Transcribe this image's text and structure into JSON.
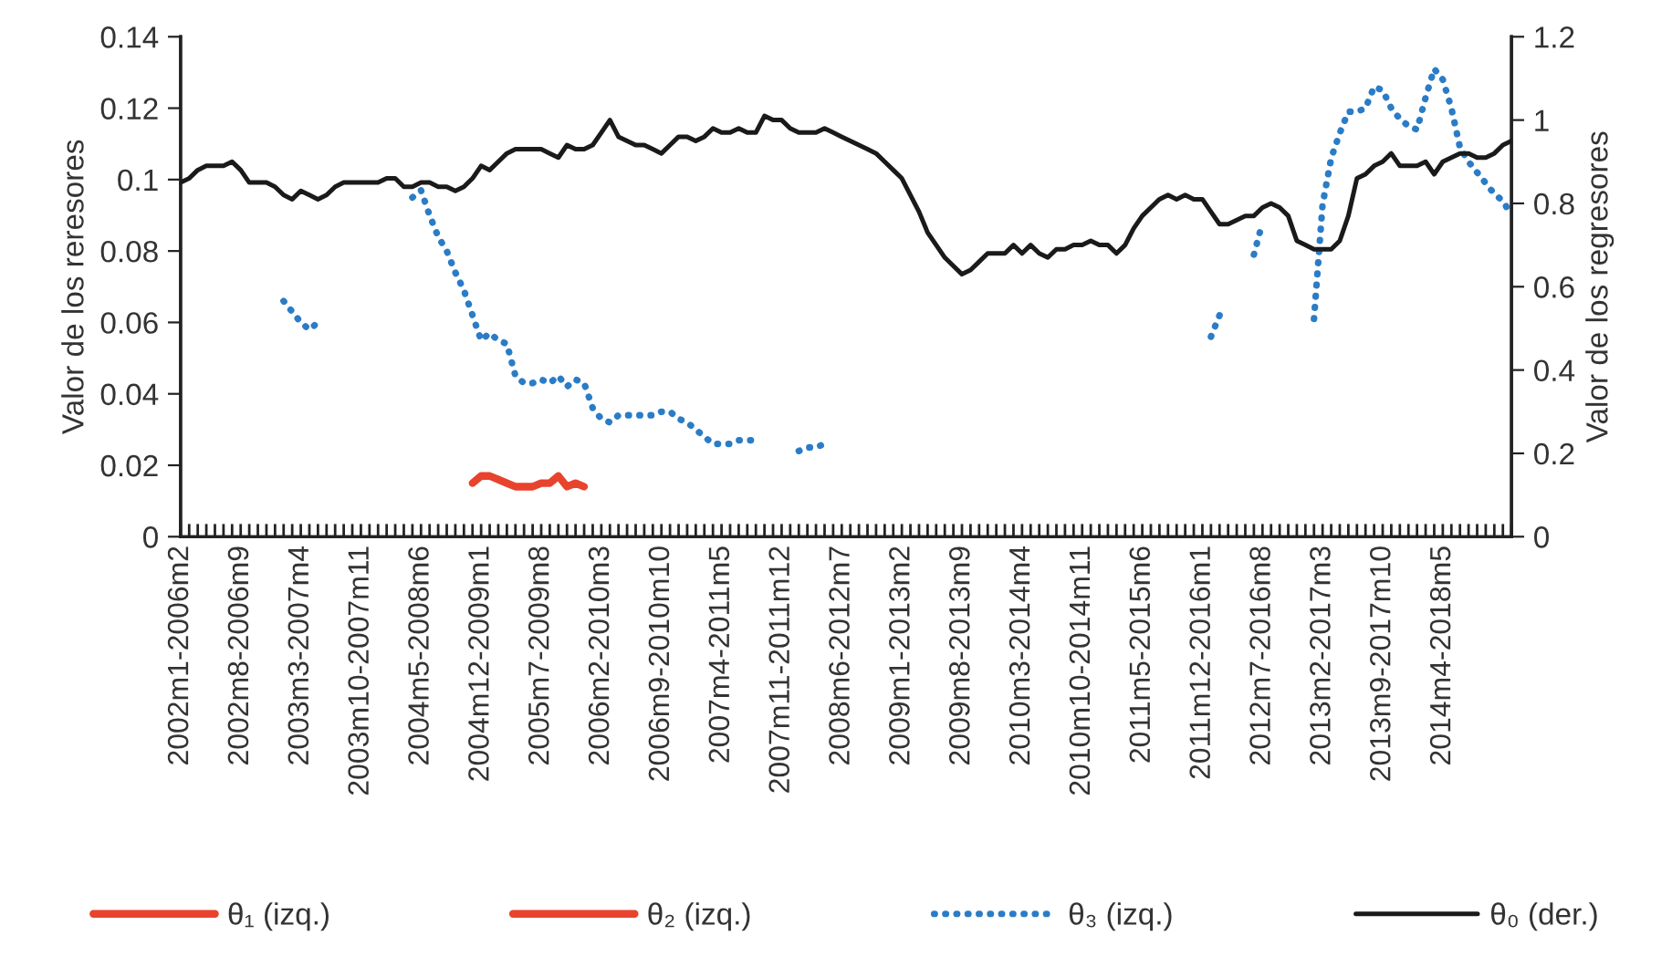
{
  "chart_data": {
    "type": "line",
    "ylabel": "Valor de los reresores",
    "y2label": "Valor de los regresores",
    "ylim": [
      0,
      0.14
    ],
    "yticks": [
      0,
      0.02,
      0.04,
      0.06,
      0.08,
      0.1,
      0.12,
      0.14
    ],
    "y2lim": [
      0,
      1.2
    ],
    "y2ticks": [
      0,
      0.2,
      0.4,
      0.6,
      0.8,
      1,
      1.2
    ],
    "categories": [
      "2002m1-2006m2",
      null,
      null,
      null,
      null,
      null,
      null,
      "2002m8-2006m9",
      null,
      null,
      null,
      null,
      null,
      null,
      "2003m3-2007m4",
      null,
      null,
      null,
      null,
      null,
      null,
      "2003m10-2007m11",
      null,
      null,
      null,
      null,
      null,
      null,
      "2004m5-2008m6",
      null,
      null,
      null,
      null,
      null,
      null,
      "2004m12-2009m1",
      null,
      null,
      null,
      null,
      null,
      null,
      "2005m7-2009m8",
      null,
      null,
      null,
      null,
      null,
      null,
      "2006m2-2010m3",
      null,
      null,
      null,
      null,
      null,
      null,
      "2006m9-2010m10",
      null,
      null,
      null,
      null,
      null,
      null,
      "2007m4-2011m5",
      null,
      null,
      null,
      null,
      null,
      null,
      "2007m11-2011m12",
      null,
      null,
      null,
      null,
      null,
      null,
      "2008m6-2012m7",
      null,
      null,
      null,
      null,
      null,
      null,
      "2009m1-2013m2",
      null,
      null,
      null,
      null,
      null,
      null,
      "2009m8-2013m9",
      null,
      null,
      null,
      null,
      null,
      null,
      "2010m3-2014m4",
      null,
      null,
      null,
      null,
      null,
      null,
      "2010m10-2014m11",
      null,
      null,
      null,
      null,
      null,
      null,
      "2011m5-2015m6",
      null,
      null,
      null,
      null,
      null,
      null,
      "2011m12-2016m1",
      null,
      null,
      null,
      null,
      null,
      null,
      "2012m7-2016m8",
      null,
      null,
      null,
      null,
      null,
      null,
      "2013m2-2017m3",
      null,
      null,
      null,
      null,
      null,
      null,
      "2013m9-2017m10",
      null,
      null,
      null,
      null,
      null,
      null,
      "2014m4-2018m5",
      null,
      null,
      null,
      null,
      null,
      null,
      null,
      null
    ],
    "grid": false,
    "legend": "bottom",
    "marker": "none",
    "series": [
      {
        "name": "θ₁ (izq.)",
        "color": "#e8432d",
        "line_style": "solid",
        "values": [
          null,
          null,
          null,
          null,
          null,
          null,
          null,
          null,
          null,
          null,
          null,
          null,
          null,
          null,
          null,
          null,
          null,
          null,
          null,
          null,
          null,
          null,
          null,
          null,
          null,
          null,
          null,
          null,
          null,
          null,
          null,
          null,
          null,
          null,
          0.015,
          0.017,
          0.017,
          0.016,
          0.015,
          0.014,
          0.014,
          0.014,
          0.015,
          0.015,
          0.017,
          0.014,
          0.015,
          0.014,
          null,
          null,
          null,
          null,
          null,
          null,
          null,
          null,
          null,
          null,
          null,
          null,
          null,
          null,
          null,
          null,
          null,
          null,
          null,
          null,
          null,
          null,
          null,
          null,
          null,
          null,
          null,
          null,
          null,
          null,
          null,
          null,
          null,
          null,
          null,
          null,
          null,
          null,
          null,
          null,
          null,
          null,
          null,
          null,
          null,
          null,
          null,
          null,
          null,
          null,
          null,
          null,
          null,
          null,
          null,
          null,
          null,
          null,
          null,
          null,
          null,
          null,
          null,
          null,
          null,
          null,
          null,
          null,
          null,
          null,
          null,
          null,
          null,
          null,
          null,
          null,
          null,
          null,
          null,
          null,
          null,
          null,
          null,
          null,
          null,
          null,
          null,
          null,
          null,
          null,
          null,
          null,
          null,
          null,
          null,
          null,
          null,
          null,
          null,
          null,
          null,
          null,
          null,
          null,
          null,
          null,
          null,
          null
        ]
      },
      {
        "name": "θ₂ (izq.)",
        "color": "#e8432d",
        "line_style": "solid",
        "values": [
          null,
          null,
          null,
          null,
          null,
          null,
          null,
          null,
          null,
          null,
          null,
          null,
          null,
          null,
          null,
          null,
          null,
          null,
          null,
          null,
          null,
          null,
          null,
          null,
          null,
          null,
          null,
          null,
          null,
          null,
          null,
          null,
          null,
          null,
          null,
          null,
          null,
          null,
          null,
          null,
          null,
          null,
          null,
          null,
          null,
          null,
          null,
          null,
          null,
          null,
          null,
          null,
          null,
          null,
          null,
          null,
          null,
          null,
          null,
          null,
          null,
          null,
          null,
          null,
          null,
          null,
          null,
          null,
          null,
          null,
          null,
          null,
          null,
          null,
          null,
          null,
          null,
          null,
          null,
          null,
          null,
          null,
          null,
          null,
          null,
          null,
          null,
          null,
          null,
          null,
          null,
          null,
          null,
          null,
          null,
          null,
          null,
          null,
          null,
          null,
          null,
          null,
          null,
          null,
          null,
          null,
          null,
          null,
          null,
          null,
          null,
          null,
          null,
          null,
          null,
          null,
          null,
          null,
          null,
          null,
          null,
          null,
          null,
          null,
          null,
          null,
          null,
          null,
          null,
          null,
          null,
          null,
          null,
          null,
          null,
          null,
          null,
          null,
          null,
          null,
          null,
          null,
          null,
          null,
          null,
          null,
          null,
          null,
          null,
          null,
          null,
          null,
          null,
          null,
          null,
          null
        ]
      },
      {
        "name": "θ₃ (izq.)",
        "color": "#2b7cc6",
        "line_style": "dotted",
        "values": [
          null,
          null,
          null,
          null,
          null,
          null,
          null,
          null,
          null,
          null,
          null,
          null,
          0.066,
          0.063,
          0.06,
          0.058,
          0.06,
          null,
          null,
          null,
          null,
          null,
          null,
          null,
          null,
          null,
          null,
          0.095,
          0.097,
          0.09,
          0.084,
          0.08,
          0.074,
          0.069,
          0.062,
          0.055,
          0.057,
          0.055,
          0.054,
          0.045,
          0.043,
          0.043,
          0.044,
          0.043,
          0.045,
          0.042,
          0.044,
          0.043,
          0.036,
          0.033,
          0.032,
          0.034,
          0.034,
          0.034,
          0.034,
          0.034,
          0.035,
          0.035,
          0.033,
          0.032,
          0.03,
          0.028,
          0.026,
          0.026,
          0.026,
          0.027,
          0.027,
          0.027,
          null,
          null,
          null,
          null,
          0.024,
          0.025,
          0.025,
          0.026,
          null,
          null,
          null,
          null,
          null,
          null,
          null,
          null,
          null,
          null,
          null,
          null,
          null,
          null,
          null,
          null,
          null,
          null,
          null,
          null,
          null,
          null,
          null,
          null,
          null,
          null,
          null,
          null,
          null,
          null,
          null,
          null,
          null,
          null,
          null,
          null,
          null,
          null,
          null,
          null,
          null,
          null,
          null,
          null,
          0.056,
          0.062,
          null,
          null,
          null,
          0.079,
          0.088,
          null,
          null,
          null,
          null,
          null,
          0.061,
          0.093,
          0.106,
          0.113,
          0.119,
          0.119,
          0.12,
          0.126,
          0.125,
          0.12,
          0.117,
          0.115,
          0.114,
          0.123,
          0.131,
          0.128,
          0.12,
          0.109,
          0.105,
          0.102,
          0.099,
          0.096,
          0.094,
          0.09
        ]
      },
      {
        "name": "θ₀ (der.)",
        "color": "#1a1a1a",
        "line_style": "solid",
        "axis": "y2",
        "values": [
          0.85,
          0.86,
          0.88,
          0.89,
          0.89,
          0.89,
          0.9,
          0.88,
          0.85,
          0.85,
          0.85,
          0.84,
          0.82,
          0.81,
          0.83,
          0.82,
          0.81,
          0.82,
          0.84,
          0.85,
          0.85,
          0.85,
          0.85,
          0.85,
          0.86,
          0.86,
          0.84,
          0.84,
          0.85,
          0.85,
          0.84,
          0.84,
          0.83,
          0.84,
          0.86,
          0.89,
          0.88,
          0.9,
          0.92,
          0.93,
          0.93,
          0.93,
          0.93,
          0.92,
          0.91,
          0.94,
          0.93,
          0.93,
          0.94,
          0.97,
          1.0,
          0.96,
          0.95,
          0.94,
          0.94,
          0.93,
          0.92,
          0.94,
          0.96,
          0.96,
          0.95,
          0.96,
          0.98,
          0.97,
          0.97,
          0.98,
          0.97,
          0.97,
          1.01,
          1.0,
          1.0,
          0.98,
          0.97,
          0.97,
          0.97,
          0.98,
          0.97,
          0.96,
          0.95,
          0.94,
          0.93,
          0.92,
          0.9,
          0.88,
          0.86,
          0.82,
          0.78,
          0.73,
          0.7,
          0.67,
          0.65,
          0.63,
          0.64,
          0.66,
          0.68,
          0.68,
          0.68,
          0.7,
          0.68,
          0.7,
          0.68,
          0.67,
          0.69,
          0.69,
          0.7,
          0.7,
          0.71,
          0.7,
          0.7,
          0.68,
          0.7,
          0.74,
          0.77,
          0.79,
          0.81,
          0.82,
          0.81,
          0.82,
          0.81,
          0.81,
          0.78,
          0.75,
          0.75,
          0.76,
          0.77,
          0.77,
          0.79,
          0.8,
          0.79,
          0.77,
          0.71,
          0.7,
          0.69,
          0.69,
          0.69,
          0.71,
          0.77,
          0.86,
          0.87,
          0.89,
          0.9,
          0.92,
          0.89,
          0.89,
          0.89,
          0.9,
          0.87,
          0.9,
          0.91,
          0.92,
          0.92,
          0.91,
          0.91,
          0.92,
          0.94,
          0.95
        ]
      }
    ]
  }
}
